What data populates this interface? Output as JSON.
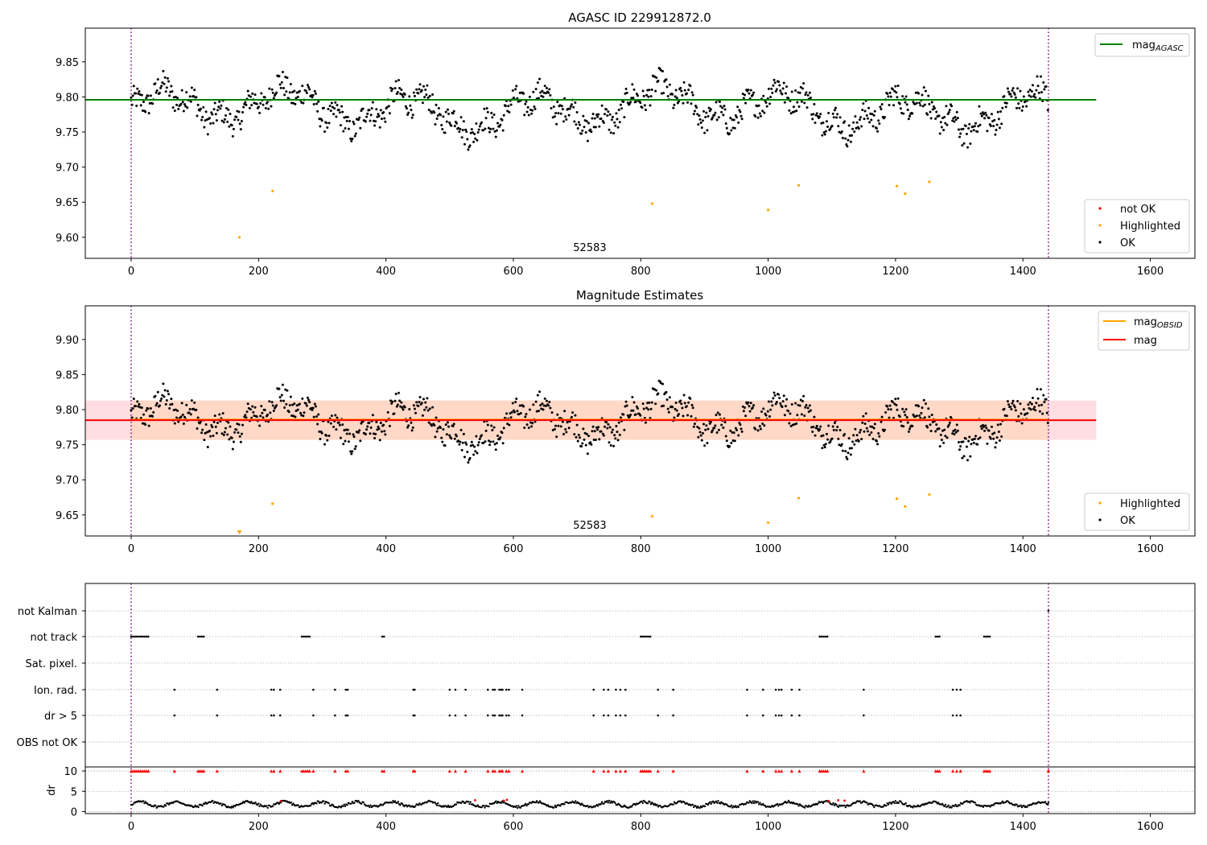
{
  "chart_data": [
    {
      "type": "scatter",
      "title": "AGASC ID 229912872.0",
      "xlabel": "",
      "ylabel": "",
      "xlim": [
        -72,
        1670
      ],
      "ylim": [
        9.57,
        9.898
      ],
      "xticks": [
        0,
        200,
        400,
        600,
        800,
        1000,
        1200,
        1400,
        1600
      ],
      "yticks": [
        9.6,
        9.65,
        9.7,
        9.75,
        9.8,
        9.85
      ],
      "obsid_label": "52583",
      "obs_boundaries": [
        0,
        1440
      ],
      "lines": [
        {
          "name": "mag",
          "sub": "AGASC",
          "y": 9.796,
          "x_range": [
            -72,
            1515
          ],
          "color": "#008000"
        }
      ],
      "legend_lines_position": "upper right",
      "legend_points_position": "lower right",
      "series": [
        {
          "name": "not OK",
          "color": "#ff0000",
          "marker": "point",
          "points": []
        },
        {
          "name": "Highlighted",
          "color": "#ffa500",
          "marker": "point",
          "points": [
            [
              170,
              9.6
            ],
            [
              222,
              9.666
            ],
            [
              818,
              9.648
            ],
            [
              1000,
              9.639
            ],
            [
              1048,
              9.674
            ],
            [
              1202,
              9.673
            ],
            [
              1215,
              9.662
            ],
            [
              1253,
              9.679
            ]
          ]
        },
        {
          "name": "OK",
          "color": "#000000",
          "marker": "point",
          "generated_from": "ok_points"
        }
      ]
    },
    {
      "type": "scatter",
      "title": "Magnitude Estimates",
      "xlabel": "",
      "ylabel": "",
      "xlim": [
        -72,
        1670
      ],
      "ylim": [
        9.62,
        9.948
      ],
      "xticks": [
        0,
        200,
        400,
        600,
        800,
        1000,
        1200,
        1400,
        1600
      ],
      "yticks": [
        9.65,
        9.7,
        9.75,
        9.8,
        9.85,
        9.9
      ],
      "obsid_label": "52583",
      "obs_boundaries": [
        0,
        1440
      ],
      "bands": [
        {
          "name": "mag band",
          "y_range": [
            9.757,
            9.813
          ],
          "x_range": [
            -72,
            1515
          ],
          "color": "#ffdde1"
        },
        {
          "name": "OBSID band",
          "y_range": [
            9.757,
            9.813
          ],
          "x_range": [
            0,
            1440
          ],
          "color": "#ffd7c4"
        }
      ],
      "lines": [
        {
          "name": "mag",
          "sub": "OBSID",
          "y": 9.786,
          "x_range": [
            0,
            1440
          ],
          "color": "#ffa500"
        },
        {
          "name": "mag",
          "sub": "",
          "y": 9.785,
          "x_range": [
            -72,
            1515
          ],
          "color": "#ff0000"
        }
      ],
      "legend_lines_position": "upper right",
      "legend_points_position": "lower right",
      "series": [
        {
          "name": "Highlighted",
          "color": "#ffa500",
          "marker": "point",
          "points": [
            [
              222,
              9.666
            ],
            [
              818,
              9.648
            ],
            [
              1000,
              9.639
            ],
            [
              1048,
              9.674
            ],
            [
              1202,
              9.673
            ],
            [
              1215,
              9.662
            ],
            [
              1253,
              9.679
            ]
          ],
          "clipped_markers": [
            [
              170,
              9.622
            ]
          ]
        },
        {
          "name": "OK",
          "color": "#000000",
          "marker": "point",
          "generated_from": "ok_points"
        }
      ]
    },
    {
      "type": "scatter",
      "title": "",
      "xlabel": "",
      "xlim": [
        -72,
        1670
      ],
      "xticks": [
        0,
        200,
        400,
        600,
        800,
        1000,
        1200,
        1400,
        1600
      ],
      "category_axis": [
        "not Kalman",
        "not track",
        "Sat. pixel.",
        "Ion. rad.",
        "dr > 5",
        "OBS not OK"
      ],
      "flags": {
        "not Kalman": [
          1440
        ],
        "not track": [
          0,
          3,
          6,
          9,
          12,
          15,
          18,
          21,
          24,
          27,
          105,
          108,
          111,
          114,
          268,
          271,
          274,
          277,
          280,
          394,
          397,
          800,
          803,
          806,
          809,
          812,
          815,
          1081,
          1084,
          1087,
          1090,
          1093,
          1263,
          1266,
          1269,
          1339,
          1342,
          1345,
          1348
        ],
        "Sat. pixel.": [],
        "Ion. rad.": [
          68,
          135,
          220,
          224,
          234,
          286,
          320,
          337,
          340,
          443,
          445,
          500,
          509,
          525,
          560,
          568,
          571,
          578,
          581,
          583,
          589,
          593,
          614,
          726,
          742,
          749,
          761,
          768,
          776,
          827,
          851,
          967,
          992,
          1012,
          1017,
          1021,
          1037,
          1049,
          1150,
          1290,
          1296,
          1302
        ],
        "dr > 5": [
          68,
          135,
          220,
          224,
          234,
          286,
          320,
          337,
          340,
          443,
          445,
          500,
          509,
          525,
          560,
          568,
          571,
          578,
          581,
          583,
          589,
          593,
          614,
          726,
          742,
          749,
          761,
          768,
          776,
          827,
          851,
          967,
          992,
          1012,
          1017,
          1021,
          1037,
          1049,
          1150,
          1290,
          1296,
          1302
        ],
        "OBS not OK": []
      },
      "dr_panel": {
        "ylabel": "dr",
        "ylim": [
          -0.5,
          11
        ],
        "yticks": [
          0,
          5,
          10
        ],
        "clip_value": 10,
        "clipped_x": [
          0,
          3,
          6,
          9,
          12,
          15,
          18,
          21,
          24,
          27,
          68,
          105,
          108,
          111,
          114,
          135,
          220,
          224,
          234,
          268,
          271,
          274,
          277,
          280,
          286,
          320,
          337,
          340,
          394,
          397,
          443,
          445,
          500,
          509,
          525,
          560,
          568,
          571,
          578,
          581,
          583,
          589,
          593,
          614,
          726,
          742,
          749,
          761,
          768,
          776,
          800,
          803,
          806,
          809,
          812,
          815,
          827,
          851,
          967,
          992,
          1012,
          1017,
          1021,
          1037,
          1049,
          1081,
          1084,
          1087,
          1090,
          1093,
          1150,
          1263,
          1266,
          1269,
          1290,
          1296,
          1302,
          1339,
          1342,
          1345,
          1348,
          1440
        ],
        "red_points": [
          [
            540,
            2.8
          ],
          [
            585,
            2.7
          ],
          [
            590,
            2.9
          ],
          [
            1095,
            2.6
          ],
          [
            1110,
            2.8
          ],
          [
            1120,
            2.7
          ],
          [
            235,
            2.6
          ],
          [
            1440,
            10
          ]
        ],
        "base_level": 1.8
      }
    }
  ]
}
